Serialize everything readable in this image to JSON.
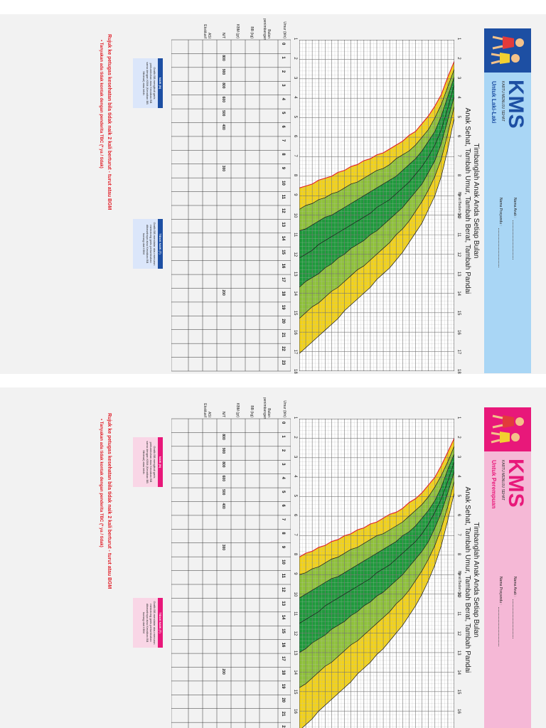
{
  "kms": {
    "logo": "KMS",
    "subtitle": "KARTU MENUJU SEHAT",
    "field_name": "Nama Anak",
    "field_posyandu": "Nama Posyandu",
    "title1": "Timbanglah Anak Anda Setiap Bulan",
    "title2": "Anak Sehat, Tambah Umur, Tambah Berat, Tambah Pandai",
    "ylabel": "Berat Badan (kg)",
    "row_umur": "Umur (bln)",
    "row_bulan": "Bulan penimbangan",
    "row_bb": "BB (kg)",
    "row_kbm": "KBM (gr)",
    "row_nt": "N/T",
    "row_asi": "ASI Eksklusif",
    "kbm_values": [
      "800",
      "900",
      "800",
      "600",
      "500",
      "400",
      "300",
      "200"
    ],
    "naik_head": "NAIK (N)",
    "naik_text": "Grafik BB mengikuti garis pertumbuhan atau Kenaikan BB sama dengan KBM (Kenaikan BB Minimal) atau lebih",
    "tidak_head": "TIDAK NAIK (T)",
    "tidak_text": "Grafik BB mendatar atau menurun memotong garis pertumbuhan dibawahnya atau Kenaikan BB kurang dari KBM",
    "note1": "Rujuk ke petugas kesehatan bila tidak naik 2 kali berturut - turut atau BGM",
    "note2": "•   Tanyakan ada tidak kontak dengan penderita TBC (* ya / tidak)"
  },
  "boy_card": {
    "sex_label": "Untuk Laki-Laki",
    "accent": "#1d4fa3",
    "band_color": "#a9d6f5",
    "chart_data": {
      "type": "area",
      "title": "Timbanglah Anak Anda Setiap Bulan",
      "xlabel": "Umur (bln)",
      "ylabel": "Berat Badan (kg)",
      "x": [
        0,
        1,
        2,
        3,
        4,
        5,
        6,
        7,
        8,
        9,
        10,
        11,
        12,
        13,
        14,
        15,
        16,
        17,
        18,
        19,
        20,
        21,
        22,
        23,
        24
      ],
      "ylim": [
        1,
        18
      ],
      "yticks": [
        1,
        2,
        3,
        4,
        5,
        6,
        7,
        8,
        9,
        10,
        11,
        12,
        13,
        14,
        15,
        16,
        17,
        18
      ],
      "series": [
        {
          "name": "-3 SD",
          "values": [
            2.1,
            2.9,
            3.8,
            4.4,
            4.9,
            5.3,
            5.7,
            5.9,
            6.2,
            6.4,
            6.6,
            6.8,
            6.9,
            7.1,
            7.2,
            7.4,
            7.5,
            7.7,
            7.8,
            8.0,
            8.1,
            8.2,
            8.4,
            8.5,
            8.6
          ]
        },
        {
          "name": "-2 SD",
          "values": [
            2.5,
            3.4,
            4.3,
            5.0,
            5.6,
            6.0,
            6.4,
            6.7,
            6.9,
            7.1,
            7.4,
            7.6,
            7.7,
            7.9,
            8.1,
            8.3,
            8.4,
            8.6,
            8.8,
            8.9,
            9.1,
            9.2,
            9.4,
            9.5,
            9.7
          ]
        },
        {
          "name": "-1 SD",
          "values": [
            2.9,
            3.9,
            4.9,
            5.7,
            6.2,
            6.7,
            7.1,
            7.4,
            7.7,
            8.0,
            8.2,
            8.4,
            8.6,
            8.8,
            9.0,
            9.2,
            9.4,
            9.6,
            9.8,
            10.0,
            10.1,
            10.3,
            10.5,
            10.7,
            10.8
          ]
        },
        {
          "name": "Median",
          "values": [
            3.3,
            4.5,
            5.6,
            6.4,
            7.0,
            7.5,
            7.9,
            8.3,
            8.6,
            8.9,
            9.2,
            9.4,
            9.6,
            9.9,
            10.1,
            10.3,
            10.5,
            10.7,
            10.9,
            11.1,
            11.3,
            11.5,
            11.8,
            12.0,
            12.2
          ]
        },
        {
          "name": "+1 SD",
          "values": [
            3.9,
            5.1,
            6.3,
            7.2,
            7.8,
            8.4,
            8.8,
            9.2,
            9.6,
            9.9,
            10.2,
            10.5,
            10.8,
            11.0,
            11.3,
            11.5,
            11.7,
            12.0,
            12.2,
            12.5,
            12.7,
            13.0,
            13.2,
            13.4,
            13.7
          ]
        },
        {
          "name": "+2 SD",
          "values": [
            4.4,
            5.8,
            7.1,
            8.0,
            8.7,
            9.3,
            9.8,
            10.3,
            10.7,
            11.0,
            11.4,
            11.7,
            12.0,
            12.3,
            12.6,
            12.8,
            13.1,
            13.4,
            13.7,
            13.9,
            14.2,
            14.5,
            14.7,
            15.0,
            15.3
          ]
        },
        {
          "name": "+3 SD",
          "values": [
            5.0,
            6.6,
            8.0,
            9.0,
            9.7,
            10.4,
            10.9,
            11.4,
            11.9,
            12.3,
            12.7,
            13.0,
            13.3,
            13.7,
            14.0,
            14.3,
            14.6,
            14.9,
            15.3,
            15.6,
            15.9,
            16.2,
            16.5,
            16.8,
            17.1
          ]
        }
      ]
    }
  },
  "girl_card": {
    "sex_label": "Untuk Perempuan",
    "accent": "#e8187a",
    "band_color": "#f5b8d6",
    "chart_data": {
      "type": "area",
      "title": "Timbanglah Anak Anda Setiap Bulan",
      "xlabel": "Umur (bln)",
      "ylabel": "Berat Badan (kg)",
      "x": [
        0,
        1,
        2,
        3,
        4,
        5,
        6,
        7,
        8,
        9,
        10,
        11,
        12,
        13,
        14,
        15,
        16,
        17,
        18,
        19,
        20,
        21,
        22,
        23,
        24
      ],
      "ylim": [
        1,
        18
      ],
      "yticks": [
        1,
        2,
        3,
        4,
        5,
        6,
        7,
        8,
        9,
        10,
        11,
        12,
        13,
        14,
        15,
        16,
        17,
        18
      ],
      "series": [
        {
          "name": "-3 SD",
          "values": [
            2.0,
            2.7,
            3.4,
            4.0,
            4.4,
            4.8,
            5.1,
            5.3,
            5.6,
            5.8,
            5.9,
            6.1,
            6.3,
            6.4,
            6.6,
            6.7,
            6.9,
            7.0,
            7.2,
            7.3,
            7.5,
            7.6,
            7.8,
            7.9,
            8.1
          ]
        },
        {
          "name": "-2 SD",
          "values": [
            2.4,
            3.2,
            3.9,
            4.5,
            5.0,
            5.4,
            5.7,
            6.0,
            6.3,
            6.5,
            6.7,
            6.9,
            7.0,
            7.2,
            7.4,
            7.6,
            7.7,
            7.9,
            8.1,
            8.2,
            8.4,
            8.6,
            8.7,
            8.9,
            9.0
          ]
        },
        {
          "name": "-1 SD",
          "values": [
            2.8,
            3.6,
            4.5,
            5.2,
            5.7,
            6.1,
            6.5,
            6.8,
            7.0,
            7.3,
            7.5,
            7.7,
            7.9,
            8.1,
            8.3,
            8.5,
            8.7,
            8.9,
            9.1,
            9.2,
            9.4,
            9.6,
            9.8,
            10.0,
            10.2
          ]
        },
        {
          "name": "Median",
          "values": [
            3.2,
            4.2,
            5.1,
            5.8,
            6.4,
            6.9,
            7.3,
            7.6,
            7.9,
            8.2,
            8.5,
            8.7,
            8.9,
            9.2,
            9.4,
            9.6,
            9.8,
            10.0,
            10.2,
            10.4,
            10.6,
            10.9,
            11.1,
            11.3,
            11.5
          ]
        },
        {
          "name": "+1 SD",
          "values": [
            3.7,
            4.8,
            5.8,
            6.6,
            7.3,
            7.8,
            8.2,
            8.6,
            9.0,
            9.3,
            9.6,
            9.9,
            10.1,
            10.4,
            10.6,
            10.9,
            11.1,
            11.4,
            11.6,
            11.8,
            12.1,
            12.3,
            12.5,
            12.8,
            13.0
          ]
        },
        {
          "name": "+2 SD",
          "values": [
            4.2,
            5.5,
            6.6,
            7.5,
            8.2,
            8.8,
            9.3,
            9.8,
            10.2,
            10.5,
            10.9,
            11.2,
            11.5,
            11.8,
            12.1,
            12.4,
            12.6,
            12.9,
            13.2,
            13.5,
            13.7,
            14.0,
            14.3,
            14.6,
            14.8
          ]
        },
        {
          "name": "+3 SD",
          "values": [
            4.8,
            6.2,
            7.5,
            8.5,
            9.3,
            10.0,
            10.6,
            11.1,
            11.6,
            12.0,
            12.4,
            12.8,
            13.1,
            13.5,
            13.8,
            14.1,
            14.5,
            14.8,
            15.1,
            15.4,
            15.7,
            16.0,
            16.4,
            16.7,
            17.0
          ]
        }
      ]
    }
  }
}
